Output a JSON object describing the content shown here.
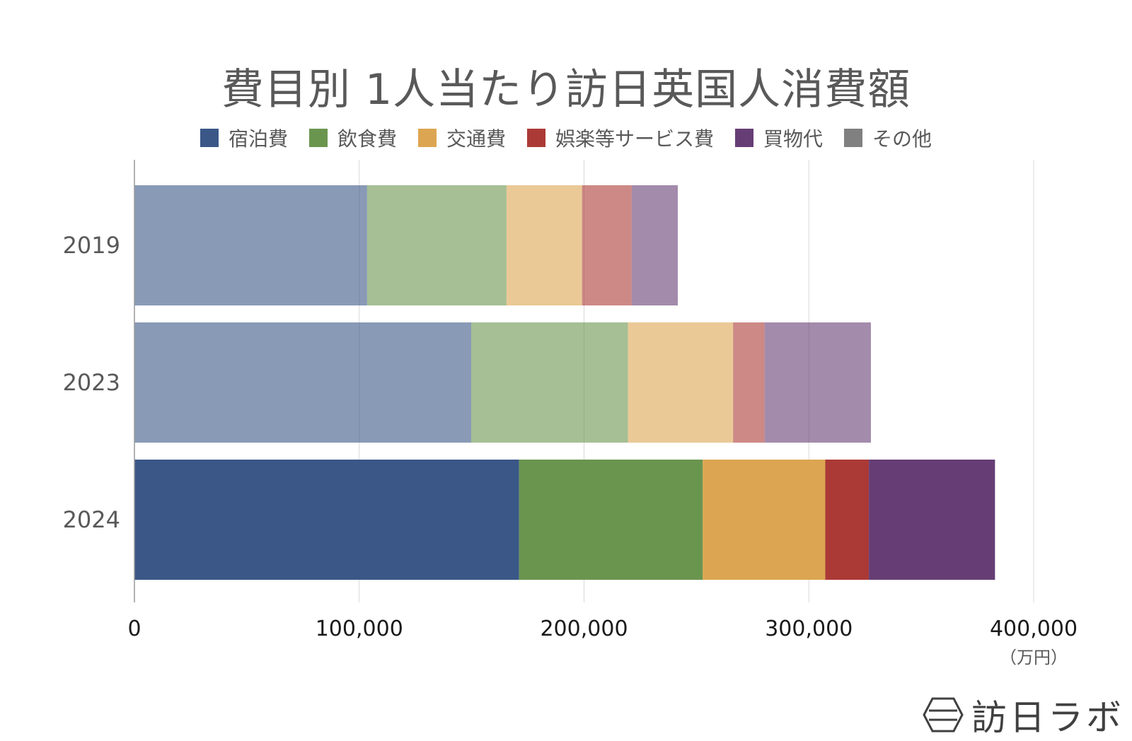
{
  "chart_data": {
    "type": "bar",
    "orientation": "horizontal",
    "stacked": true,
    "title": "費目別 1人当たり訪日英国人消費額",
    "categories": [
      "2019",
      "2023",
      "2024"
    ],
    "highlight_category": "2024",
    "series": [
      {
        "name": "宿泊費",
        "color": "#3a5787",
        "values": [
          103500,
          149800,
          171100
        ]
      },
      {
        "name": "飲食費",
        "color": "#6a954f",
        "values": [
          62000,
          69700,
          81700
        ]
      },
      {
        "name": "交通費",
        "color": "#dca551",
        "values": [
          33600,
          46800,
          54500
        ]
      },
      {
        "name": "娯楽等サービス費",
        "color": "#ab3a36",
        "values": [
          22100,
          14000,
          19400
        ]
      },
      {
        "name": "買物代",
        "color": "#663e75",
        "values": [
          20500,
          47300,
          56100
        ]
      },
      {
        "name": "その他",
        "color": "#808080",
        "values": [
          0,
          0,
          0
        ]
      }
    ],
    "x_ticks": [
      0,
      100000,
      200000,
      300000,
      400000
    ],
    "x_tick_labels": [
      "0",
      "100,000",
      "200,000",
      "300,000",
      "400,000"
    ],
    "xlim": [
      0,
      400000
    ],
    "xlabel": "（万円）",
    "ylabel": "",
    "grid": true,
    "legend_position": "top"
  },
  "brand": {
    "name": "訪日ラボ",
    "icon": "hexagon-logo-icon"
  }
}
